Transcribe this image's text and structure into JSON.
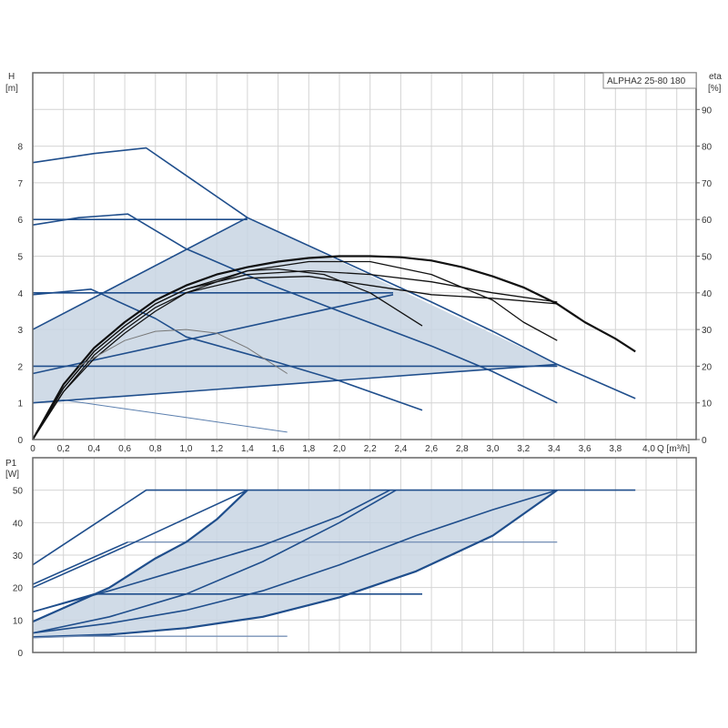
{
  "colors": {
    "blue": "#1f4e8c",
    "light_blue": "#5b7fae",
    "fill": "#c8d5e3",
    "black": "#111111",
    "grey": "#777777"
  },
  "chart_data": [
    {
      "type": "line",
      "title": "ALPHA2 25-80 180",
      "xlabel": "Q [m³/h]",
      "ylabel_left": "H",
      "ylabel_left_unit": "[m]",
      "ylabel_right": "eta",
      "ylabel_right_unit": "[%]",
      "xlim": [
        0,
        4.33
      ],
      "ylim": [
        0,
        10
      ],
      "y2lim": [
        0,
        100
      ],
      "grid": true,
      "x_ticks": [
        0,
        0.2,
        0.4,
        0.6,
        0.8,
        1.0,
        1.2,
        1.4,
        1.6,
        1.8,
        2.0,
        2.2,
        2.4,
        2.6,
        2.8,
        3.0,
        3.2,
        3.4,
        3.6,
        3.8,
        4.0
      ],
      "x_tick_labels": [
        "0",
        "0,2",
        "0,4",
        "0,6",
        "0,8",
        "1,0",
        "1,2",
        "1,4",
        "1,6",
        "1,8",
        "2,0",
        "2,2",
        "2,4",
        "2,6",
        "2,8",
        "3,0",
        "3,2",
        "3,4",
        "3,6",
        "3,8",
        "4,0"
      ],
      "y_ticks": [
        0,
        1,
        2,
        3,
        4,
        5,
        6,
        7,
        8
      ],
      "y_tick_labels": [
        "0",
        "1",
        "2",
        "3",
        "4",
        "5",
        "6",
        "7",
        "8"
      ],
      "y2_ticks": [
        0,
        10,
        20,
        30,
        40,
        50,
        60,
        70,
        80,
        90
      ],
      "y2_tick_labels": [
        "0",
        "10",
        "20",
        "30",
        "40",
        "50",
        "60",
        "70",
        "80",
        "90"
      ],
      "shaded_region": [
        [
          0,
          1
        ],
        [
          0,
          3
        ],
        [
          1.4,
          6.05
        ],
        [
          3.42,
          2.05
        ]
      ],
      "series": [
        {
          "name": "speed-curve-max",
          "axis": "H",
          "style": "blue",
          "points": [
            [
              0,
              7.55
            ],
            [
              0.4,
              7.8
            ],
            [
              0.74,
              7.95
            ],
            [
              1.0,
              7.2
            ],
            [
              1.4,
              6.05
            ],
            [
              2.0,
              4.9
            ],
            [
              2.6,
              3.75
            ],
            [
              3.0,
              2.95
            ],
            [
              3.42,
              2.05
            ],
            [
              3.93,
              1.12
            ]
          ]
        },
        {
          "name": "speed-curve-2",
          "axis": "H",
          "style": "blue",
          "points": [
            [
              0,
              5.85
            ],
            [
              0.3,
              6.05
            ],
            [
              0.62,
              6.15
            ],
            [
              1.0,
              5.2
            ],
            [
              1.5,
              4.3
            ],
            [
              2.0,
              3.5
            ],
            [
              2.6,
              2.55
            ],
            [
              3.0,
              1.85
            ],
            [
              3.42,
              1.0
            ]
          ]
        },
        {
          "name": "speed-curve-3",
          "axis": "H",
          "style": "blue",
          "points": [
            [
              0,
              3.95
            ],
            [
              0.38,
              4.1
            ],
            [
              0.8,
              3.3
            ],
            [
              1.0,
              2.8
            ],
            [
              1.6,
              2.1
            ],
            [
              2.0,
              1.6
            ],
            [
              2.54,
              0.8
            ]
          ]
        },
        {
          "name": "speed-curve-min",
          "axis": "H",
          "style": "thin",
          "points": [
            [
              0,
              1.0
            ],
            [
              0.2,
              1.08
            ],
            [
              1.0,
              0.6
            ],
            [
              1.66,
              0.2
            ]
          ]
        },
        {
          "name": "constant-pressure-6",
          "axis": "H",
          "style": "blue",
          "points": [
            [
              0,
              6
            ],
            [
              1.4,
              6
            ]
          ]
        },
        {
          "name": "constant-pressure-4",
          "axis": "H",
          "style": "blue",
          "points": [
            [
              0,
              4
            ],
            [
              2.35,
              4
            ]
          ]
        },
        {
          "name": "constant-pressure-2",
          "axis": "H",
          "style": "blue",
          "points": [
            [
              0,
              2
            ],
            [
              3.42,
              2
            ]
          ]
        },
        {
          "name": "proportional-pressure-high",
          "axis": "H",
          "style": "blue",
          "points": [
            [
              0,
              3
            ],
            [
              1.4,
              6.05
            ]
          ]
        },
        {
          "name": "proportional-pressure-mid",
          "axis": "H",
          "style": "blue",
          "points": [
            [
              0,
              1.8
            ],
            [
              2.35,
              3.95
            ]
          ]
        },
        {
          "name": "proportional-pressure-low",
          "axis": "H",
          "style": "blue",
          "points": [
            [
              0,
              1
            ],
            [
              3.42,
              2.05
            ]
          ]
        },
        {
          "name": "efficiency-max",
          "axis": "eta",
          "style": "black-bold",
          "points": [
            [
              0,
              0
            ],
            [
              0.2,
              15
            ],
            [
              0.4,
              25
            ],
            [
              0.6,
              32
            ],
            [
              0.8,
              38
            ],
            [
              1.0,
              42
            ],
            [
              1.2,
              45
            ],
            [
              1.4,
              47
            ],
            [
              1.6,
              48.5
            ],
            [
              1.8,
              49.5
            ],
            [
              2.0,
              50
            ],
            [
              2.2,
              50
            ],
            [
              2.4,
              49.7
            ],
            [
              2.6,
              48.8
            ],
            [
              2.8,
              47
            ],
            [
              3.0,
              44.5
            ],
            [
              3.2,
              41.5
            ],
            [
              3.42,
              37
            ],
            [
              3.6,
              32
            ],
            [
              3.8,
              27.5
            ],
            [
              3.93,
              24
            ]
          ]
        },
        {
          "name": "efficiency-2",
          "axis": "eta",
          "style": "black",
          "points": [
            [
              0,
              0
            ],
            [
              0.2,
              14
            ],
            [
              0.4,
              24
            ],
            [
              0.6,
              31
            ],
            [
              0.8,
              37
            ],
            [
              1.0,
              41
            ],
            [
              1.4,
              46
            ],
            [
              1.8,
              48.5
            ],
            [
              2.2,
              48.5
            ],
            [
              2.6,
              45
            ],
            [
              3.0,
              38
            ],
            [
              3.2,
              32
            ],
            [
              3.42,
              27
            ]
          ]
        },
        {
          "name": "efficiency-3",
          "axis": "eta",
          "style": "black",
          "points": [
            [
              0,
              0
            ],
            [
              0.2,
              14
            ],
            [
              0.4,
              24
            ],
            [
              0.6,
              31
            ],
            [
              0.8,
              37
            ],
            [
              1.0,
              41
            ],
            [
              1.4,
              45
            ],
            [
              1.8,
              46
            ],
            [
              2.2,
              45
            ],
            [
              2.6,
              43
            ],
            [
              3.0,
              40
            ],
            [
              3.42,
              37.5
            ]
          ]
        },
        {
          "name": "efficiency-4",
          "axis": "eta",
          "style": "black",
          "points": [
            [
              0,
              0
            ],
            [
              0.2,
              13
            ],
            [
              0.4,
              23
            ],
            [
              0.6,
              30
            ],
            [
              0.8,
              36
            ],
            [
              1.0,
              40
            ],
            [
              1.4,
              44
            ],
            [
              1.8,
              44.5
            ],
            [
              2.2,
              42
            ],
            [
              2.6,
              39.5
            ],
            [
              3.0,
              38.5
            ],
            [
              3.42,
              37
            ]
          ]
        },
        {
          "name": "efficiency-5",
          "axis": "eta",
          "style": "black",
          "points": [
            [
              0,
              0
            ],
            [
              0.2,
              13
            ],
            [
              0.4,
              22
            ],
            [
              0.6,
              29
            ],
            [
              0.8,
              35
            ],
            [
              1.0,
              40
            ],
            [
              1.4,
              46
            ],
            [
              1.6,
              46.5
            ],
            [
              1.9,
              45
            ],
            [
              2.2,
              40
            ],
            [
              2.54,
              31
            ]
          ]
        },
        {
          "name": "efficiency-min",
          "axis": "eta",
          "style": "grey",
          "points": [
            [
              0.3,
              20
            ],
            [
              0.6,
              27
            ],
            [
              0.8,
              29.5
            ],
            [
              1.0,
              30
            ],
            [
              1.2,
              29
            ],
            [
              1.4,
              25
            ],
            [
              1.66,
              18
            ]
          ]
        }
      ]
    },
    {
      "type": "line",
      "ylabel": "P1",
      "ylabel_unit": "[W]",
      "xlim": [
        0,
        4.33
      ],
      "ylim": [
        0,
        60
      ],
      "grid": true,
      "y_ticks": [
        0,
        10,
        20,
        30,
        40,
        50
      ],
      "y_tick_labels": [
        "0",
        "10",
        "20",
        "30",
        "40",
        "50"
      ],
      "shaded_region": [
        [
          0,
          9.5
        ],
        [
          0.5,
          20
        ],
        [
          0.8,
          29
        ],
        [
          1.0,
          34
        ],
        [
          1.2,
          41
        ],
        [
          1.4,
          50
        ],
        [
          3.42,
          50
        ],
        [
          3.0,
          36
        ],
        [
          2.5,
          25
        ],
        [
          2.0,
          17
        ],
        [
          1.5,
          11
        ],
        [
          1.0,
          7.5
        ],
        [
          0.5,
          5.5
        ],
        [
          0,
          4.7
        ]
      ],
      "series": [
        {
          "name": "power-max",
          "style": "blue",
          "points": [
            [
              0,
              27
            ],
            [
              0.74,
              50
            ],
            [
              3.93,
              50
            ]
          ]
        },
        {
          "name": "power-curve-2",
          "style": "blue",
          "points": [
            [
              0,
              21
            ],
            [
              0.62,
              34
            ]
          ]
        },
        {
          "name": "power-line-34",
          "style": "light",
          "points": [
            [
              0.62,
              34
            ],
            [
              3.42,
              34
            ]
          ]
        },
        {
          "name": "power-proportional-high",
          "style": "blue",
          "points": [
            [
              0,
              20
            ],
            [
              0.62,
              33
            ],
            [
              1.4,
              50
            ]
          ]
        },
        {
          "name": "power-curve-3",
          "style": "blue",
          "points": [
            [
              0,
              12.5
            ],
            [
              0.4,
              18
            ]
          ]
        },
        {
          "name": "power-line-18",
          "style": "blue",
          "points": [
            [
              0.4,
              18
            ],
            [
              2.54,
              18
            ]
          ]
        },
        {
          "name": "power-proportional-mid",
          "style": "blue",
          "points": [
            [
              0,
              12.5
            ],
            [
              0.5,
              19
            ],
            [
              1.0,
              26
            ],
            [
              1.5,
              33
            ],
            [
              2.0,
              42
            ],
            [
              2.33,
              50
            ]
          ]
        },
        {
          "name": "power-constant-high",
          "style": "blue-bold",
          "points": [
            [
              0,
              9.5
            ],
            [
              0.5,
              20
            ],
            [
              0.8,
              29
            ],
            [
              1.0,
              34
            ],
            [
              1.2,
              41
            ],
            [
              1.4,
              50
            ]
          ]
        },
        {
          "name": "power-constant-mid",
          "style": "blue",
          "points": [
            [
              0,
              6
            ],
            [
              0.5,
              11
            ],
            [
              1.0,
              18
            ],
            [
              1.5,
              28
            ],
            [
              2.0,
              40
            ],
            [
              2.37,
              50
            ]
          ]
        },
        {
          "name": "power-proportional-low",
          "style": "blue",
          "points": [
            [
              0,
              6
            ],
            [
              0.5,
              9
            ],
            [
              1.0,
              13
            ],
            [
              1.5,
              19
            ],
            [
              2.0,
              27
            ],
            [
              2.5,
              36
            ],
            [
              3.0,
              44
            ],
            [
              3.42,
              50
            ]
          ]
        },
        {
          "name": "power-constant-low",
          "style": "blue-bold",
          "points": [
            [
              0,
              4.7
            ],
            [
              0.5,
              5.5
            ],
            [
              1.0,
              7.5
            ],
            [
              1.5,
              11
            ],
            [
              2.0,
              17
            ],
            [
              2.5,
              25
            ],
            [
              3.0,
              36
            ],
            [
              3.42,
              50
            ]
          ]
        },
        {
          "name": "power-min",
          "style": "light",
          "points": [
            [
              0,
              4.5
            ],
            [
              0.3,
              5
            ],
            [
              1.66,
              5
            ]
          ]
        }
      ]
    }
  ]
}
